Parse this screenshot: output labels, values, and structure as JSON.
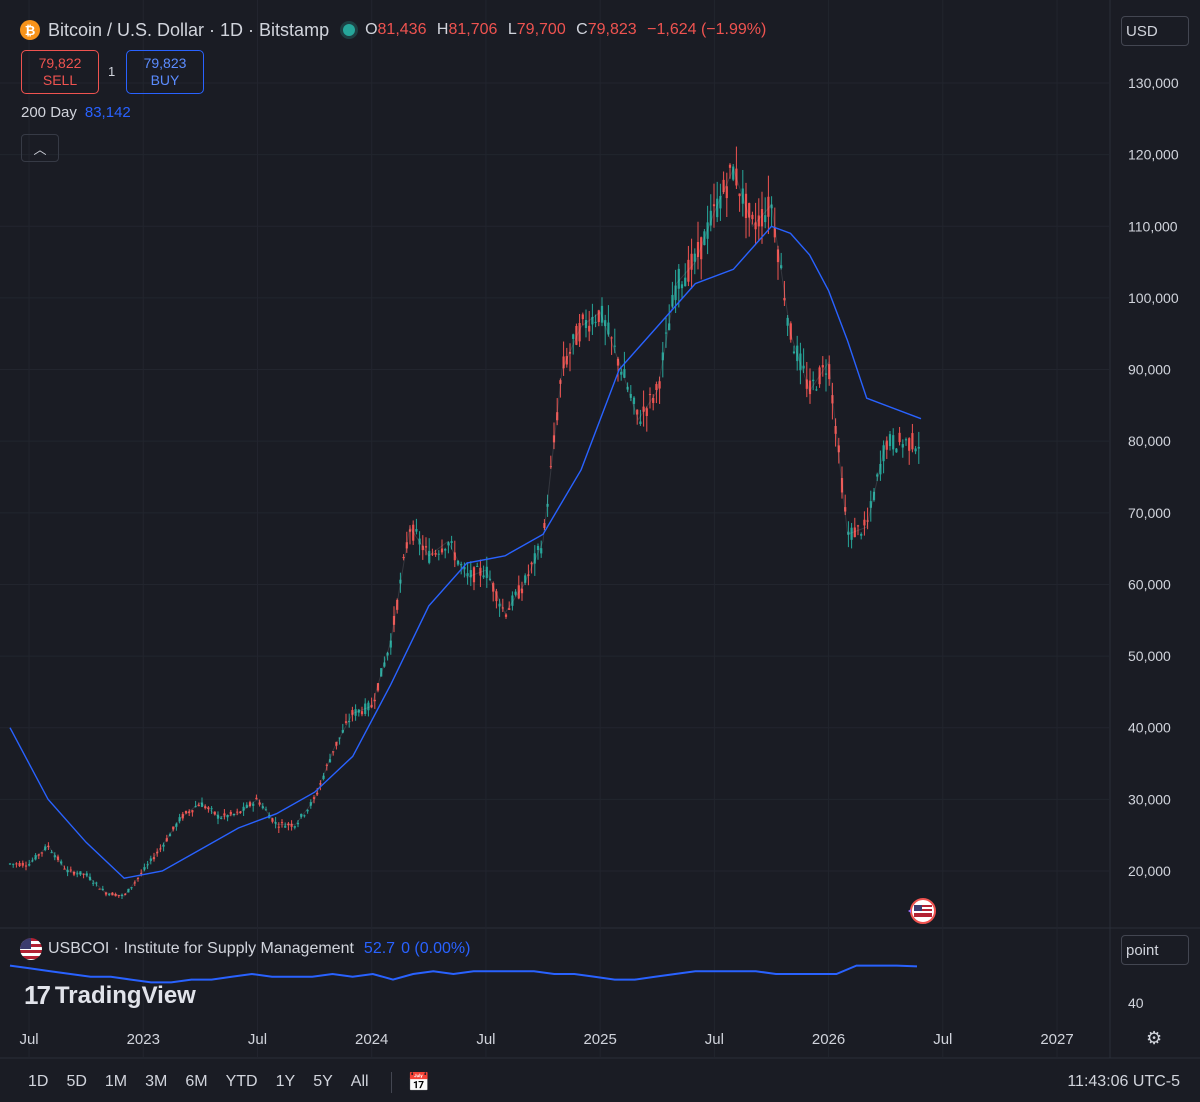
{
  "header": {
    "symbol_title": "Bitcoin / U.S. Dollar · 1D · Bitstamp",
    "open_label": "O",
    "open": "81,436",
    "high_label": "H",
    "high": "81,706",
    "low_label": "L",
    "low": "79,700",
    "close_label": "C",
    "close": "79,823",
    "change": "−1,624 (−1.99%)",
    "currency": "USD"
  },
  "trade": {
    "sell_price": "79,822",
    "sell_label": "SELL",
    "quantity": "1",
    "buy_price": "79,823",
    "buy_label": "BUY"
  },
  "ma_legend": {
    "label": "200 Day",
    "value": "83,142"
  },
  "indicator": {
    "name": "USBCOI · Institute for Supply Management",
    "value": "52.7",
    "change": "0 (0.00%)",
    "axis_label": "40",
    "scale_button": "point"
  },
  "brand": {
    "name": "TradingView"
  },
  "bottom_bar": {
    "ranges": [
      "1D",
      "5D",
      "1M",
      "3M",
      "6M",
      "YTD",
      "1Y",
      "5Y",
      "All"
    ],
    "clock": "11:43:06 UTC-5"
  },
  "colors": {
    "up": "#26a69a",
    "down": "#ef5350",
    "ma": "#2962ff",
    "background": "#1a1c24",
    "grid": "#22252e"
  },
  "chart_data": {
    "type": "line",
    "title": "Bitcoin / U.S. Dollar · 1D · Bitstamp",
    "ylim": [
      15000,
      135000
    ],
    "y_ticks": [
      "130,000",
      "120,000",
      "110,000",
      "100,000",
      "90,000",
      "80,000",
      "70,000",
      "60,000",
      "50,000",
      "40,000",
      "30,000",
      "20,000"
    ],
    "x_ticks": [
      "Jul",
      "2023",
      "Jul",
      "2024",
      "Jul",
      "2025",
      "Jul",
      "2026",
      "Jul",
      "2027"
    ],
    "grid": true,
    "series": [
      {
        "name": "Bitcoin / U.S. Dollar",
        "x": [
          "2022-07",
          "2022-08",
          "2022-09",
          "2022-10",
          "2022-11",
          "2022-12",
          "2023-01",
          "2023-02",
          "2023-03",
          "2023-04",
          "2023-05",
          "2023-06",
          "2023-07",
          "2023-08",
          "2023-09",
          "2023-10",
          "2023-11",
          "2023-12",
          "2024-01",
          "2024-02",
          "2024-03",
          "2024-04",
          "2024-05",
          "2024-06",
          "2024-07",
          "2024-08",
          "2024-09",
          "2024-10",
          "2024-11",
          "2024-12",
          "2025-01",
          "2025-02",
          "2025-03",
          "2025-04",
          "2025-05",
          "2025-06",
          "2025-07",
          "2025-08",
          "2025-09",
          "2025-10",
          "2025-11",
          "2025-12",
          "2026-01",
          "2026-02",
          "2026-03",
          "2026-04"
        ],
        "values": [
          21000,
          23500,
          20000,
          19500,
          17000,
          16500,
          20000,
          23500,
          27500,
          29500,
          27500,
          28000,
          30000,
          26500,
          26500,
          30000,
          37000,
          42000,
          43000,
          52000,
          68000,
          64000,
          66000,
          61000,
          62000,
          56000,
          60000,
          66000,
          90000,
          96000,
          98000,
          91000,
          83000,
          87000,
          102000,
          105000,
          112000,
          118000,
          110000,
          113000,
          95000,
          87000,
          91000,
          67000,
          68000,
          79823
        ]
      },
      {
        "name": "200 Day",
        "x": [
          "2022-06",
          "2022-08",
          "2022-10",
          "2022-12",
          "2023-02",
          "2023-04",
          "2023-06",
          "2023-08",
          "2023-10",
          "2023-12",
          "2024-02",
          "2024-04",
          "2024-06",
          "2024-08",
          "2024-10",
          "2024-12",
          "2025-02",
          "2025-04",
          "2025-06",
          "2025-08",
          "2025-10",
          "2025-11",
          "2025-12",
          "2026-01",
          "2026-02",
          "2026-03",
          "2026-04"
        ],
        "values": [
          40000,
          30000,
          24000,
          19000,
          20000,
          23000,
          26000,
          28000,
          31000,
          36000,
          46000,
          57000,
          63000,
          64000,
          67000,
          76000,
          90000,
          96000,
          102000,
          104000,
          110000,
          109000,
          106000,
          101000,
          94000,
          86000,
          83142
        ]
      }
    ]
  },
  "indicator_data": {
    "type": "line",
    "series": [
      {
        "name": "USBCOI",
        "values": [
          53,
          52,
          51,
          50,
          49,
          49,
          48,
          47,
          47,
          48,
          48,
          49,
          50,
          49,
          49,
          49,
          50,
          49,
          50,
          48,
          50,
          51,
          50,
          51,
          51,
          51,
          51,
          50,
          50,
          49,
          48,
          48,
          49,
          50,
          51,
          51,
          51,
          51,
          50,
          50,
          50,
          50,
          53,
          53,
          53,
          52.7
        ]
      }
    ]
  }
}
